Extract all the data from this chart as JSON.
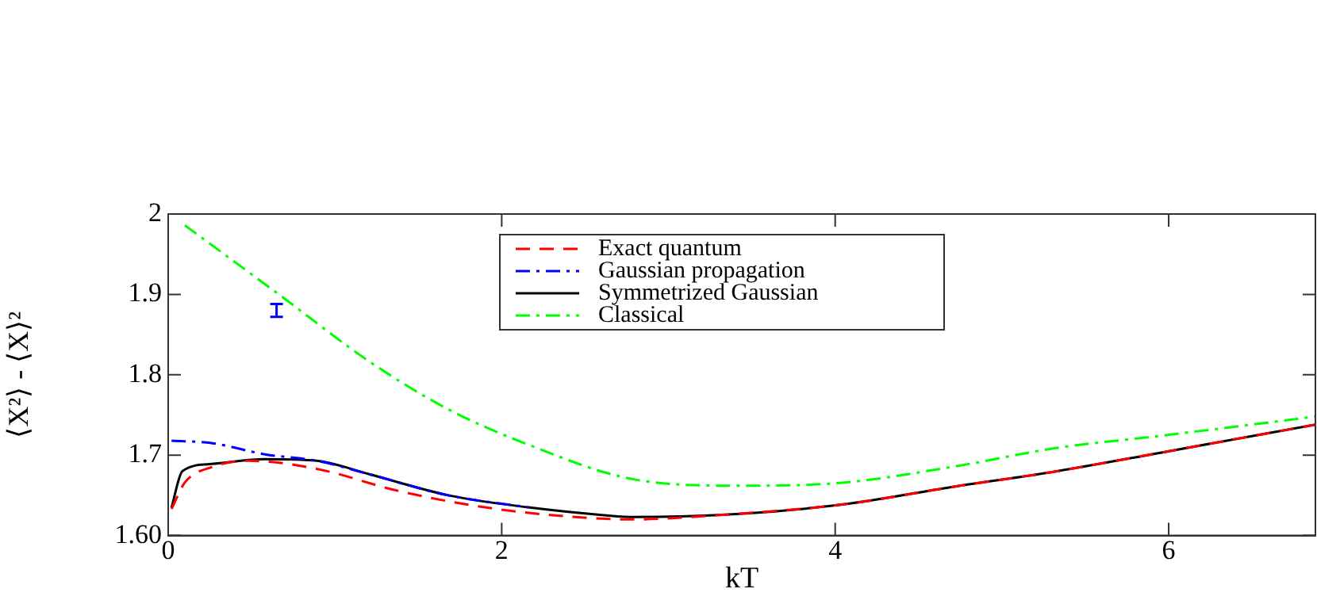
{
  "chart_data": {
    "type": "line",
    "xlabel": "kT",
    "ylabel": "⟨X²⟩ - ⟨X⟩²",
    "xlim": [
      0,
      6.88
    ],
    "ylim": [
      1.6,
      2
    ],
    "xticks": [
      0,
      2,
      4,
      6
    ],
    "yticks": [
      {
        "value": 1.6,
        "label": "1.60"
      },
      1.7,
      1.8,
      1.9,
      2
    ],
    "grid": false,
    "legend": "top",
    "series": [
      {
        "name": "Exact quantum",
        "color": "#ff0000",
        "line_style": "dashed",
        "x": [
          0.02,
          0.1,
          0.26,
          0.48,
          0.89,
          1.37,
          1.84,
          2.32,
          2.79,
          3.27,
          4.06,
          4.69,
          5.33,
          5.95,
          6.88
        ],
        "values": [
          1.633,
          1.666,
          1.685,
          1.693,
          1.683,
          1.656,
          1.637,
          1.625,
          1.62,
          1.625,
          1.639,
          1.66,
          1.68,
          1.703,
          1.738
        ]
      },
      {
        "name": "Gaussian propagation",
        "color": "#0000ff",
        "line_style": "dashdot",
        "x": [
          0.02,
          0.26,
          0.58,
          0.89,
          1.21,
          1.68,
          2.16
        ],
        "values": [
          1.718,
          1.715,
          1.701,
          1.693,
          1.676,
          1.65,
          1.635
        ]
      },
      {
        "name": "Symmetrized Gaussian",
        "color": "#000000",
        "line_style": "solid",
        "x": [
          0.02,
          0.085,
          0.26,
          0.58,
          0.89,
          1.21,
          1.68,
          2.16,
          2.63,
          2.79,
          3.43,
          4.06,
          4.69,
          5.33,
          5.95,
          6.88
        ],
        "values": [
          1.635,
          1.68,
          1.689,
          1.695,
          1.693,
          1.676,
          1.65,
          1.635,
          1.625,
          1.623,
          1.627,
          1.639,
          1.66,
          1.68,
          1.703,
          1.738
        ]
      },
      {
        "name": "Classical",
        "color": "#00ff00",
        "line_style": "dashdot",
        "x": [
          0.1,
          0.67,
          1.21,
          1.68,
          2.16,
          2.79,
          3.43,
          4.06,
          4.69,
          5.33,
          5.95,
          6.88
        ],
        "values": [
          1.986,
          1.899,
          1.816,
          1.757,
          1.713,
          1.67,
          1.662,
          1.666,
          1.685,
          1.709,
          1.724,
          1.748
        ]
      },
      {
        "type": "scatter",
        "color": "#0000ff",
        "x": [
          0.65
        ],
        "values": [
          1.88
        ],
        "errors": [
          0.008
        ]
      }
    ]
  }
}
